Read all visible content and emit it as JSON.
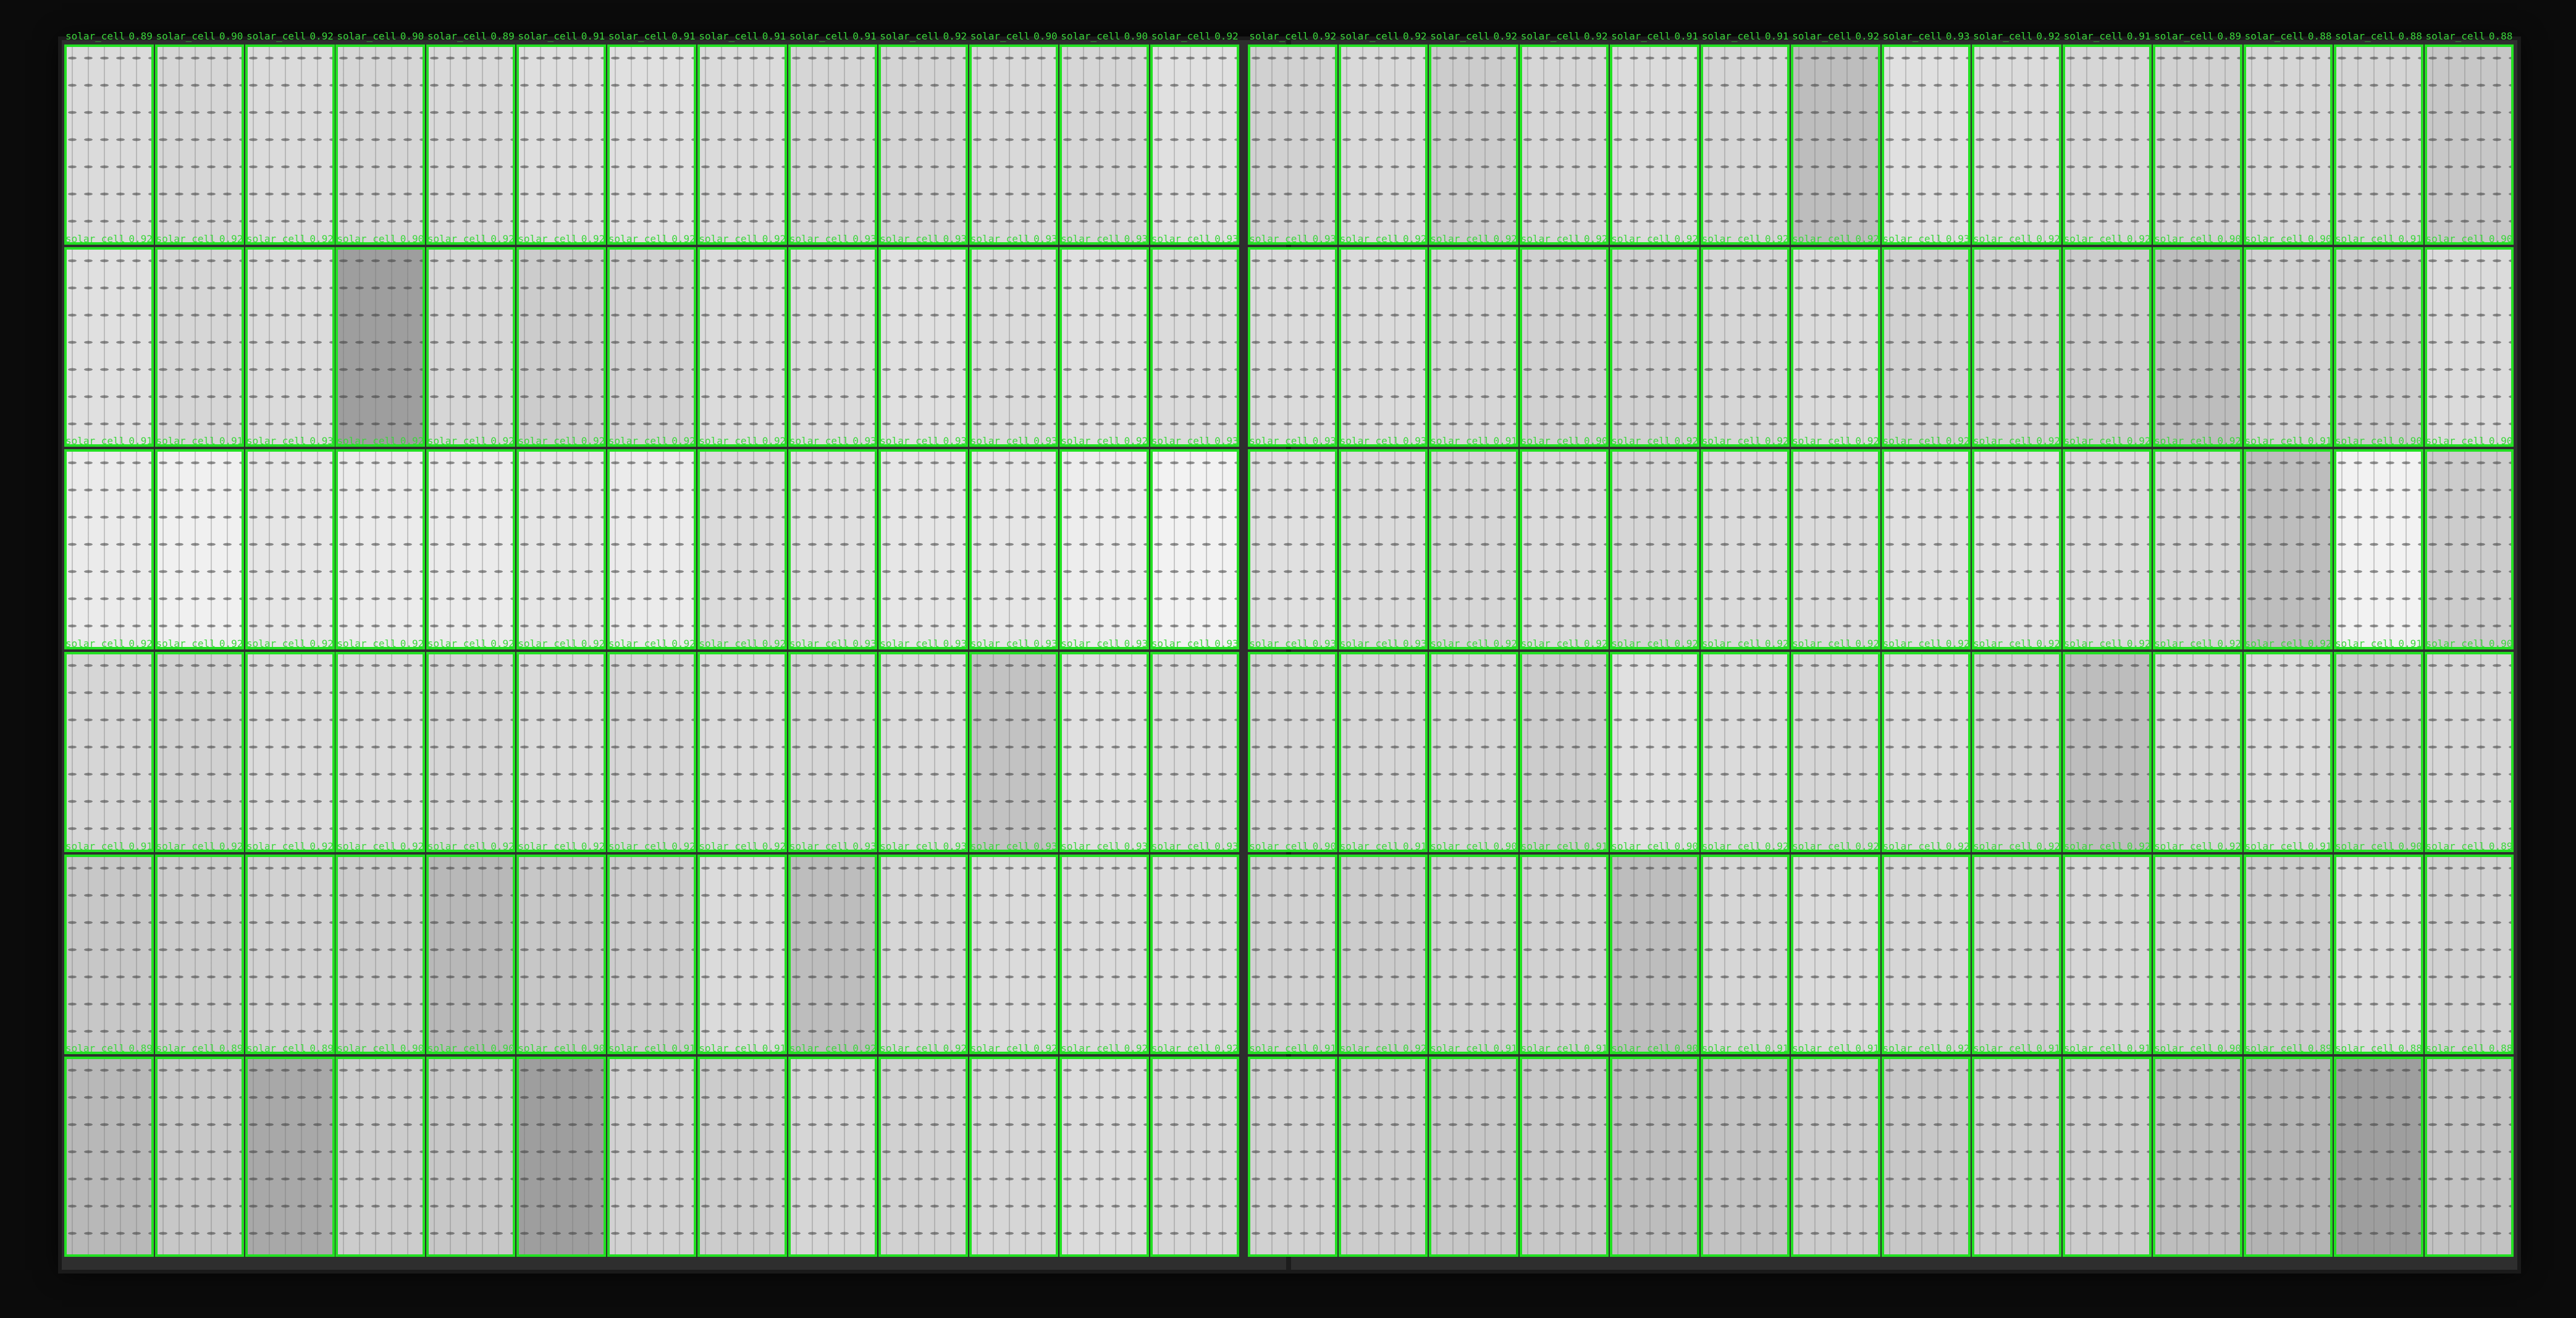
{
  "detection": {
    "class_label": "solar_cell",
    "box_color": "#22e022",
    "label_color": "#3bd63b"
  },
  "grid": {
    "rows": 6,
    "columns": 27,
    "scores": [
      [
        "0.89",
        "0.90",
        "0.92",
        "0.90",
        "0.89",
        "0.91",
        "0.91",
        "0.91",
        "0.91",
        "0.92",
        "0.90",
        "0.90",
        "0.92",
        "0.92",
        "0.92",
        "0.92",
        "0.92",
        "0.91",
        "0.91",
        "0.92",
        "0.93",
        "0.92",
        "0.91",
        "0.89",
        "0.88",
        "0.88",
        "0.88"
      ],
      [
        "0.92",
        "0.92",
        "0.92",
        "0.90",
        "0.92",
        "0.92",
        "0.92",
        "0.92",
        "0.93",
        "0.93",
        "0.93",
        "0.93",
        "0.93",
        "0.93",
        "0.92",
        "0.92",
        "0.92",
        "0.92",
        "0.92",
        "0.92",
        "0.93",
        "0.92",
        "0.92",
        "0.90",
        "0.90",
        "0.91",
        "0.90"
      ],
      [
        "0.91",
        "0.91",
        "0.93",
        "0.92",
        "0.92",
        "0.92",
        "0.92",
        "0.92",
        "0.93",
        "0.93",
        "0.93",
        "0.92",
        "0.93",
        "0.93",
        "0.93",
        "0.91",
        "0.90",
        "0.92",
        "0.92",
        "0.92",
        "0.92",
        "0.92",
        "0.92",
        "0.92",
        "0.91",
        "0.90",
        "0.90"
      ],
      [
        "0.92",
        "0.92",
        "0.92",
        "0.92",
        "0.92",
        "0.92",
        "0.92",
        "0.92",
        "0.93",
        "0.93",
        "0.93",
        "0.93",
        "0.93",
        "0.93",
        "0.93",
        "0.92",
        "0.92",
        "0.92",
        "0.92",
        "0.92",
        "0.92",
        "0.92",
        "0.92",
        "0.92",
        "0.92",
        "0.91",
        "0.90"
      ],
      [
        "0.91",
        "0.92",
        "0.92",
        "0.92",
        "0.92",
        "0.92",
        "0.92",
        "0.92",
        "0.93",
        "0.93",
        "0.93",
        "0.93",
        "0.93",
        "0.90",
        "0.91",
        "0.90",
        "0.91",
        "0.90",
        "0.92",
        "0.92",
        "0.92",
        "0.92",
        "0.92",
        "0.92",
        "0.91",
        "0.90",
        "0.89"
      ],
      [
        "0.89",
        "0.89",
        "0.89",
        "0.90",
        "0.90",
        "0.90",
        "0.91",
        "0.91",
        "0.92",
        "0.92",
        "0.92",
        "0.92",
        "0.92",
        "0.91",
        "0.92",
        "0.91",
        "0.91",
        "0.90",
        "0.91",
        "0.91",
        "0.92",
        "0.91",
        "0.91",
        "0.90",
        "0.89",
        "0.88",
        "0.88"
      ]
    ],
    "shading": [
      [
        0.86,
        0.84,
        0.86,
        0.84,
        0.85,
        0.87,
        0.88,
        0.86,
        0.84,
        0.83,
        0.85,
        0.84,
        0.88,
        0.82,
        0.85,
        0.8,
        0.84,
        0.86,
        0.84,
        0.74,
        0.88,
        0.86,
        0.84,
        0.82,
        0.84,
        0.83,
        0.78
      ],
      [
        0.88,
        0.84,
        0.86,
        0.62,
        0.84,
        0.8,
        0.82,
        0.86,
        0.86,
        0.88,
        0.86,
        0.88,
        0.86,
        0.86,
        0.86,
        0.84,
        0.82,
        0.82,
        0.84,
        0.86,
        0.82,
        0.82,
        0.8,
        0.74,
        0.82,
        0.8,
        0.86
      ],
      [
        0.92,
        0.94,
        0.9,
        0.92,
        0.92,
        0.9,
        0.92,
        0.86,
        0.88,
        0.9,
        0.9,
        0.93,
        0.95,
        0.88,
        0.86,
        0.84,
        0.86,
        0.84,
        0.86,
        0.86,
        0.88,
        0.88,
        0.86,
        0.84,
        0.74,
        0.95,
        0.8
      ],
      [
        0.84,
        0.82,
        0.86,
        0.86,
        0.84,
        0.86,
        0.84,
        0.86,
        0.84,
        0.86,
        0.76,
        0.88,
        0.86,
        0.84,
        0.84,
        0.84,
        0.8,
        0.88,
        0.86,
        0.84,
        0.86,
        0.82,
        0.74,
        0.84,
        0.86,
        0.8,
        0.84
      ],
      [
        0.78,
        0.8,
        0.82,
        0.8,
        0.72,
        0.78,
        0.8,
        0.86,
        0.74,
        0.84,
        0.86,
        0.86,
        0.86,
        0.82,
        0.8,
        0.82,
        0.82,
        0.74,
        0.84,
        0.86,
        0.84,
        0.82,
        0.84,
        0.82,
        0.8,
        0.86,
        0.82
      ],
      [
        0.72,
        0.78,
        0.66,
        0.8,
        0.78,
        0.62,
        0.82,
        0.8,
        0.84,
        0.82,
        0.84,
        0.86,
        0.84,
        0.82,
        0.8,
        0.78,
        0.78,
        0.74,
        0.76,
        0.8,
        0.78,
        0.8,
        0.8,
        0.74,
        0.7,
        0.62,
        0.76
      ]
    ]
  }
}
